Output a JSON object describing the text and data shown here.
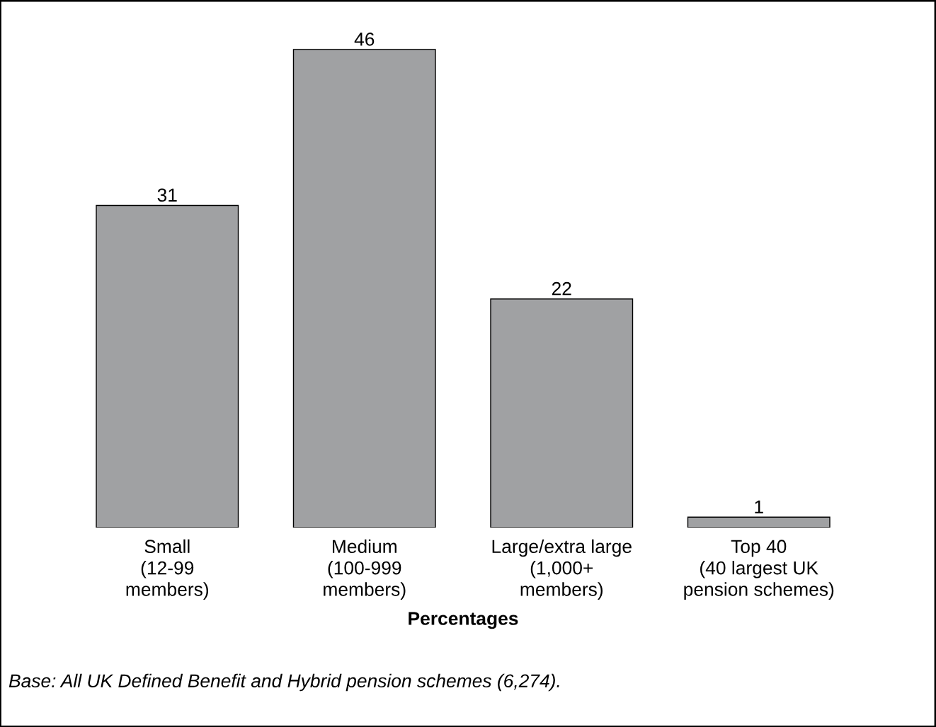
{
  "chart_data": {
    "type": "bar",
    "xlabel": "Percentages",
    "categories": [
      "Small\n(12-99\nmembers)",
      "Medium\n(100-999\nmembers)",
      "Large/extra large\n(1,000+\nmembers)",
      "Top 40\n(40 largest UK\npension schemes)"
    ],
    "values": [
      31,
      46,
      22,
      1
    ],
    "color": "#a0a1a3",
    "data_labels": true,
    "grid": false,
    "legend": false,
    "annotations": [
      "Base: All UK Defined Benefit and Hybrid pension schemes (6,274)."
    ]
  }
}
